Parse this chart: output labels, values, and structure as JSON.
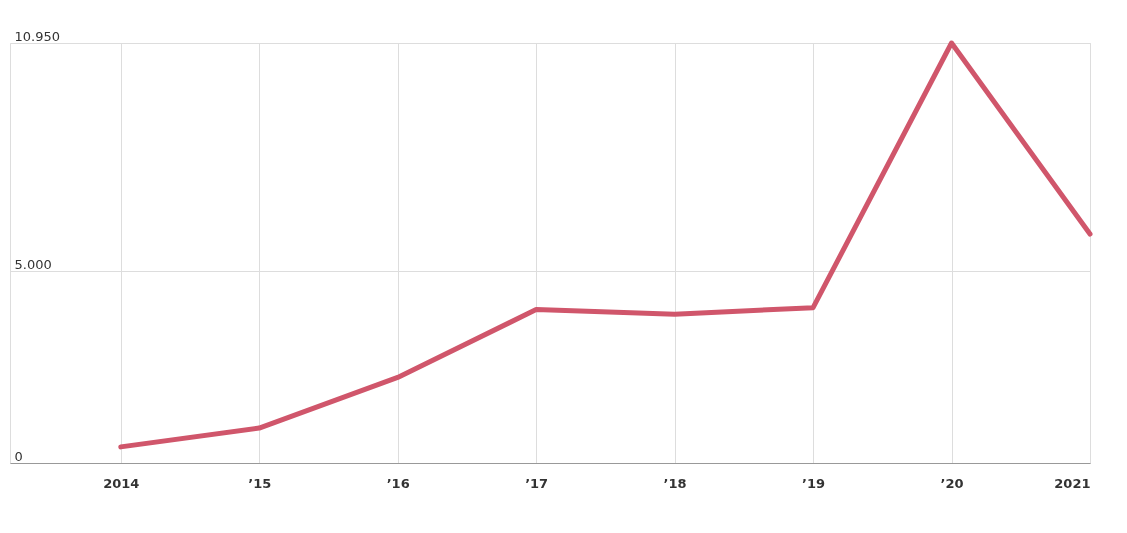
{
  "chart_data": {
    "type": "line",
    "x": [
      2014,
      2015,
      2016,
      2017,
      2018,
      2019,
      2020,
      2021
    ],
    "series": [
      {
        "color": "#d0566b",
        "values": [
          420,
          910,
          2230,
          4000,
          3880,
          4050,
          10950,
          5970
        ]
      }
    ],
    "xlim": [
      2013.2,
      2021
    ],
    "ylim": [
      0,
      10950
    ],
    "xticks": [
      {
        "value": 2014,
        "label": "2014"
      },
      {
        "value": 2015,
        "label": "’15"
      },
      {
        "value": 2016,
        "label": "’16"
      },
      {
        "value": 2017,
        "label": "’17"
      },
      {
        "value": 2018,
        "label": "’18"
      },
      {
        "value": 2019,
        "label": "’19"
      },
      {
        "value": 2020,
        "label": "’20"
      },
      {
        "value": 2021,
        "label": "2021"
      }
    ],
    "yticks": [
      0,
      {
        "value": 5000,
        "label": "5.000"
      },
      {
        "value": 10950,
        "label": "10.950"
      }
    ],
    "grid": true,
    "marker": "none",
    "line_style": "solid"
  }
}
